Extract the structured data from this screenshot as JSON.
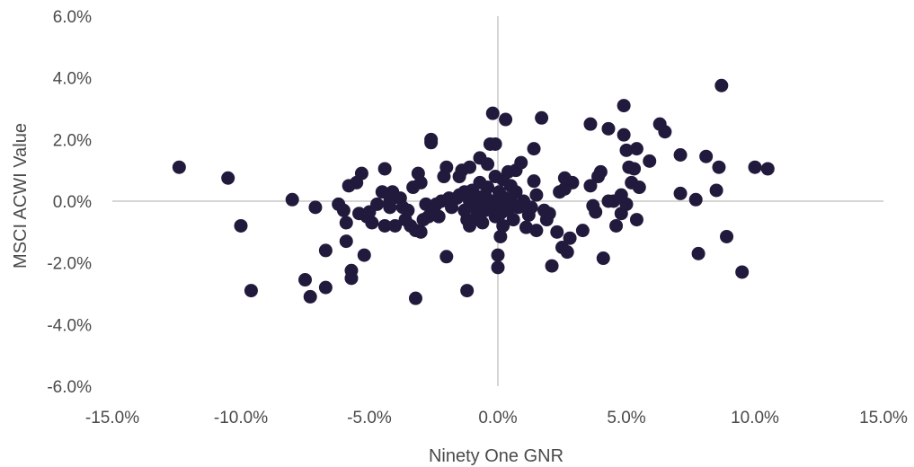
{
  "chart_data": {
    "type": "scatter",
    "xlabel": "Ninety One GNR",
    "ylabel": "MSCI ACWI Value",
    "xlim": [
      -15,
      15
    ],
    "ylim": [
      -6,
      6
    ],
    "x_ticks": [
      "-15.0%",
      "-10.0%",
      "-5.0%",
      "0.0%",
      "5.0%",
      "10.0%",
      "15.0%"
    ],
    "y_ticks": [
      "6.0%",
      "4.0%",
      "2.0%",
      "0.0%",
      "-2.0%",
      "-4.0%",
      "-6.0%"
    ],
    "x_tick_values": [
      -15,
      -10,
      -5,
      0,
      5,
      10,
      15
    ],
    "y_tick_values": [
      6,
      4,
      2,
      0,
      -2,
      -4,
      -6
    ],
    "grid": false,
    "legend": "none",
    "colors": {
      "marker": "#211a3c",
      "zero_line": "#c8c8c8"
    },
    "series": [
      {
        "points": [
          [
            -12.4,
            1.1
          ],
          [
            -10.5,
            0.75
          ],
          [
            -10.0,
            -0.8
          ],
          [
            -9.6,
            -2.9
          ],
          [
            -8.0,
            0.05
          ],
          [
            -7.5,
            -2.55
          ],
          [
            -7.3,
            -3.1
          ],
          [
            -7.1,
            -0.2
          ],
          [
            -6.7,
            -2.8
          ],
          [
            -6.7,
            -1.6
          ],
          [
            -6.2,
            -0.1
          ],
          [
            -6.0,
            -0.3
          ],
          [
            -5.9,
            -0.7
          ],
          [
            -5.9,
            -1.3
          ],
          [
            -5.8,
            0.5
          ],
          [
            -5.7,
            -2.25
          ],
          [
            -5.7,
            -2.5
          ],
          [
            -5.5,
            0.6
          ],
          [
            -5.4,
            -0.4
          ],
          [
            -5.3,
            0.9
          ],
          [
            -5.2,
            -1.75
          ],
          [
            -5.1,
            -0.5
          ],
          [
            -5.0,
            -0.35
          ],
          [
            -4.9,
            -0.7
          ],
          [
            -4.7,
            -0.1
          ],
          [
            -4.5,
            0.3
          ],
          [
            -4.4,
            1.05
          ],
          [
            -4.4,
            -0.8
          ],
          [
            -4.2,
            0.0
          ],
          [
            -4.2,
            -0.2
          ],
          [
            -4.1,
            0.3
          ],
          [
            -4.0,
            -0.8
          ],
          [
            -3.8,
            0.1
          ],
          [
            -3.7,
            -0.2
          ],
          [
            -3.6,
            -0.6
          ],
          [
            -3.5,
            -0.3
          ],
          [
            -3.4,
            -0.8
          ],
          [
            -3.3,
            0.45
          ],
          [
            -3.2,
            -3.15
          ],
          [
            -3.2,
            -0.95
          ],
          [
            -3.1,
            0.9
          ],
          [
            -3.0,
            0.6
          ],
          [
            -3.0,
            -1.0
          ],
          [
            -2.9,
            -0.6
          ],
          [
            -2.8,
            -0.1
          ],
          [
            -2.7,
            -0.5
          ],
          [
            -2.6,
            2.0
          ],
          [
            -2.6,
            1.9
          ],
          [
            -2.5,
            -0.3
          ],
          [
            -2.4,
            -0.1
          ],
          [
            -2.3,
            -0.5
          ],
          [
            -2.2,
            0.0
          ],
          [
            -2.1,
            0.8
          ],
          [
            -2.0,
            1.1
          ],
          [
            -2.0,
            -1.8
          ],
          [
            -1.9,
            0.1
          ],
          [
            -1.8,
            -0.2
          ],
          [
            -1.6,
            0.1
          ],
          [
            -1.5,
            0.2
          ],
          [
            -1.5,
            0.8
          ],
          [
            -1.4,
            1.0
          ],
          [
            -1.3,
            0.3
          ],
          [
            -1.3,
            -0.3
          ],
          [
            -1.2,
            -0.6
          ],
          [
            -1.2,
            -2.9
          ],
          [
            -1.1,
            1.1
          ],
          [
            -1.1,
            0.0
          ],
          [
            -1.1,
            -0.8
          ],
          [
            -1.0,
            0.35
          ],
          [
            -1.0,
            -0.1
          ],
          [
            -0.9,
            -0.6
          ],
          [
            -0.9,
            0.2
          ],
          [
            -0.8,
            -0.4
          ],
          [
            -0.8,
            0.05
          ],
          [
            -0.7,
            1.4
          ],
          [
            -0.7,
            0.6
          ],
          [
            -0.6,
            -0.7
          ],
          [
            -0.6,
            -0.1
          ],
          [
            -0.5,
            0.2
          ],
          [
            -0.5,
            -0.3
          ],
          [
            -0.4,
            1.2
          ],
          [
            -0.4,
            0.45
          ],
          [
            -0.3,
            1.85
          ],
          [
            -0.3,
            -0.2
          ],
          [
            -0.2,
            2.85
          ],
          [
            -0.2,
            0.0
          ],
          [
            -0.1,
            1.85
          ],
          [
            -0.1,
            0.8
          ],
          [
            -0.1,
            -0.5
          ],
          [
            0.0,
            -0.1
          ],
          [
            0.0,
            -1.75
          ],
          [
            0.0,
            -2.15
          ],
          [
            0.05,
            0.3
          ],
          [
            0.1,
            -0.4
          ],
          [
            0.1,
            -1.15
          ],
          [
            0.2,
            0.7
          ],
          [
            0.2,
            -0.8
          ],
          [
            0.3,
            2.65
          ],
          [
            0.3,
            0.1
          ],
          [
            0.35,
            -0.3
          ],
          [
            0.4,
            0.95
          ],
          [
            0.5,
            -0.2
          ],
          [
            0.5,
            0.5
          ],
          [
            0.5,
            0.0
          ],
          [
            0.6,
            -0.6
          ],
          [
            0.7,
            1.0
          ],
          [
            0.7,
            0.3
          ],
          [
            0.8,
            -0.2
          ],
          [
            0.9,
            1.25
          ],
          [
            1.0,
            0.0
          ],
          [
            1.1,
            -0.85
          ],
          [
            1.2,
            -0.45
          ],
          [
            1.3,
            -0.2
          ],
          [
            1.4,
            1.7
          ],
          [
            1.4,
            0.65
          ],
          [
            1.5,
            0.2
          ],
          [
            1.5,
            -0.95
          ],
          [
            1.7,
            2.7
          ],
          [
            1.8,
            -0.3
          ],
          [
            1.9,
            -0.6
          ],
          [
            2.0,
            -0.4
          ],
          [
            2.1,
            -2.1
          ],
          [
            2.3,
            -1.0
          ],
          [
            2.4,
            0.3
          ],
          [
            2.5,
            -1.5
          ],
          [
            2.6,
            0.4
          ],
          [
            2.6,
            0.75
          ],
          [
            2.7,
            -1.65
          ],
          [
            2.8,
            -1.2
          ],
          [
            2.9,
            0.6
          ],
          [
            3.3,
            -0.95
          ],
          [
            3.6,
            2.5
          ],
          [
            3.6,
            0.5
          ],
          [
            3.7,
            -0.15
          ],
          [
            3.8,
            -0.35
          ],
          [
            3.9,
            0.8
          ],
          [
            4.0,
            0.95
          ],
          [
            4.1,
            -1.85
          ],
          [
            4.3,
            2.35
          ],
          [
            4.3,
            0.0
          ],
          [
            4.5,
            0.0
          ],
          [
            4.6,
            -0.8
          ],
          [
            4.8,
            -0.4
          ],
          [
            4.8,
            0.2
          ],
          [
            4.9,
            2.15
          ],
          [
            4.9,
            3.1
          ],
          [
            5.0,
            -0.1
          ],
          [
            5.0,
            1.65
          ],
          [
            5.1,
            1.1
          ],
          [
            5.2,
            0.6
          ],
          [
            5.3,
            1.05
          ],
          [
            5.4,
            -0.6
          ],
          [
            5.4,
            1.7
          ],
          [
            5.5,
            0.45
          ],
          [
            5.9,
            1.3
          ],
          [
            6.3,
            2.5
          ],
          [
            6.5,
            2.25
          ],
          [
            7.1,
            1.5
          ],
          [
            7.1,
            0.25
          ],
          [
            7.7,
            0.05
          ],
          [
            7.8,
            -1.7
          ],
          [
            8.1,
            1.45
          ],
          [
            8.5,
            0.35
          ],
          [
            8.6,
            1.1
          ],
          [
            8.7,
            3.75
          ],
          [
            8.9,
            -1.15
          ],
          [
            9.5,
            -2.3
          ],
          [
            10.0,
            1.1
          ],
          [
            10.5,
            1.05
          ]
        ]
      }
    ]
  }
}
